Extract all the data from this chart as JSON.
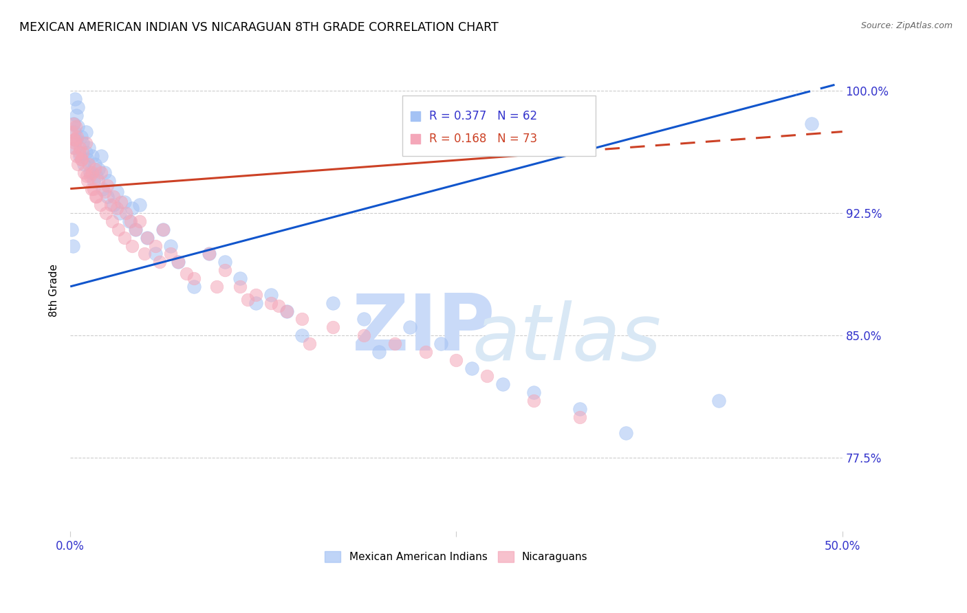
{
  "title": "MEXICAN AMERICAN INDIAN VS NICARAGUAN 8TH GRADE CORRELATION CHART",
  "source": "Source: ZipAtlas.com",
  "ylabel": "8th Grade",
  "ylabel_right_ticks": [
    77.5,
    85.0,
    92.5,
    100.0
  ],
  "ylabel_right_labels": [
    "77.5%",
    "85.0%",
    "92.5%",
    "100.0%"
  ],
  "xmin": 0.0,
  "xmax": 50.0,
  "ymin": 73.0,
  "ymax": 102.5,
  "blue_label": "Mexican American Indians",
  "pink_label": "Nicaraguans",
  "blue_R": 0.377,
  "blue_N": 62,
  "pink_R": 0.168,
  "pink_N": 73,
  "blue_color": "#a4c2f4",
  "pink_color": "#f4a7b9",
  "blue_line_color": "#1155cc",
  "pink_line_color": "#cc4125",
  "watermark_zip": "ZIP",
  "watermark_atlas": "atlas",
  "watermark_color": "#c9daf8",
  "blue_scatter_x": [
    0.1,
    0.15,
    0.2,
    0.25,
    0.3,
    0.3,
    0.4,
    0.4,
    0.5,
    0.5,
    0.6,
    0.7,
    0.8,
    0.9,
    1.0,
    1.0,
    1.1,
    1.2,
    1.3,
    1.4,
    1.5,
    1.6,
    1.7,
    1.8,
    2.0,
    2.1,
    2.2,
    2.4,
    2.5,
    2.8,
    3.0,
    3.2,
    3.5,
    3.8,
    4.0,
    4.2,
    4.5,
    5.0,
    5.5,
    6.0,
    6.5,
    7.0,
    8.0,
    9.0,
    10.0,
    11.0,
    12.0,
    13.0,
    14.0,
    15.0,
    17.0,
    19.0,
    20.0,
    22.0,
    24.0,
    26.0,
    28.0,
    30.0,
    33.0,
    36.0,
    42.0,
    48.0
  ],
  "blue_scatter_y": [
    91.5,
    90.5,
    98.0,
    97.5,
    96.5,
    99.5,
    97.0,
    98.5,
    97.8,
    99.0,
    96.0,
    97.2,
    96.8,
    95.5,
    97.5,
    96.2,
    95.8,
    96.5,
    95.0,
    96.0,
    94.5,
    95.5,
    94.8,
    95.2,
    96.0,
    94.0,
    95.0,
    93.5,
    94.5,
    93.0,
    93.8,
    92.5,
    93.2,
    92.0,
    92.8,
    91.5,
    93.0,
    91.0,
    90.0,
    91.5,
    90.5,
    89.5,
    88.0,
    90.0,
    89.5,
    88.5,
    87.0,
    87.5,
    86.5,
    85.0,
    87.0,
    86.0,
    84.0,
    85.5,
    84.5,
    83.0,
    82.0,
    81.5,
    80.5,
    79.0,
    81.0,
    98.0
  ],
  "pink_scatter_x": [
    0.1,
    0.15,
    0.2,
    0.25,
    0.3,
    0.35,
    0.4,
    0.45,
    0.5,
    0.6,
    0.7,
    0.8,
    0.9,
    1.0,
    1.1,
    1.2,
    1.3,
    1.4,
    1.5,
    1.6,
    1.7,
    1.8,
    2.0,
    2.2,
    2.4,
    2.6,
    2.8,
    3.0,
    3.3,
    3.6,
    3.9,
    4.2,
    4.5,
    5.0,
    5.5,
    6.0,
    6.5,
    7.0,
    8.0,
    9.0,
    10.0,
    11.0,
    12.0,
    13.0,
    14.0,
    15.0,
    0.25,
    0.55,
    0.75,
    1.05,
    1.35,
    1.65,
    1.95,
    2.3,
    2.7,
    3.1,
    3.5,
    4.0,
    4.8,
    5.8,
    7.5,
    9.5,
    11.5,
    13.5,
    15.5,
    17.0,
    19.0,
    21.0,
    23.0,
    25.0,
    27.0,
    30.0,
    33.0
  ],
  "pink_scatter_y": [
    97.5,
    96.5,
    98.0,
    97.0,
    96.8,
    97.8,
    96.0,
    97.2,
    95.5,
    96.5,
    95.8,
    96.2,
    95.0,
    96.8,
    94.5,
    95.5,
    94.8,
    95.0,
    94.0,
    95.2,
    93.5,
    94.5,
    95.0,
    93.8,
    94.2,
    93.0,
    93.5,
    92.8,
    93.2,
    92.5,
    92.0,
    91.5,
    92.0,
    91.0,
    90.5,
    91.5,
    90.0,
    89.5,
    88.5,
    90.0,
    89.0,
    88.0,
    87.5,
    87.0,
    86.5,
    86.0,
    97.0,
    96.2,
    95.8,
    94.8,
    94.0,
    93.5,
    93.0,
    92.5,
    92.0,
    91.5,
    91.0,
    90.5,
    90.0,
    89.5,
    88.8,
    88.0,
    87.2,
    86.8,
    84.5,
    85.5,
    85.0,
    84.5,
    84.0,
    83.5,
    82.5,
    81.0,
    80.0
  ]
}
